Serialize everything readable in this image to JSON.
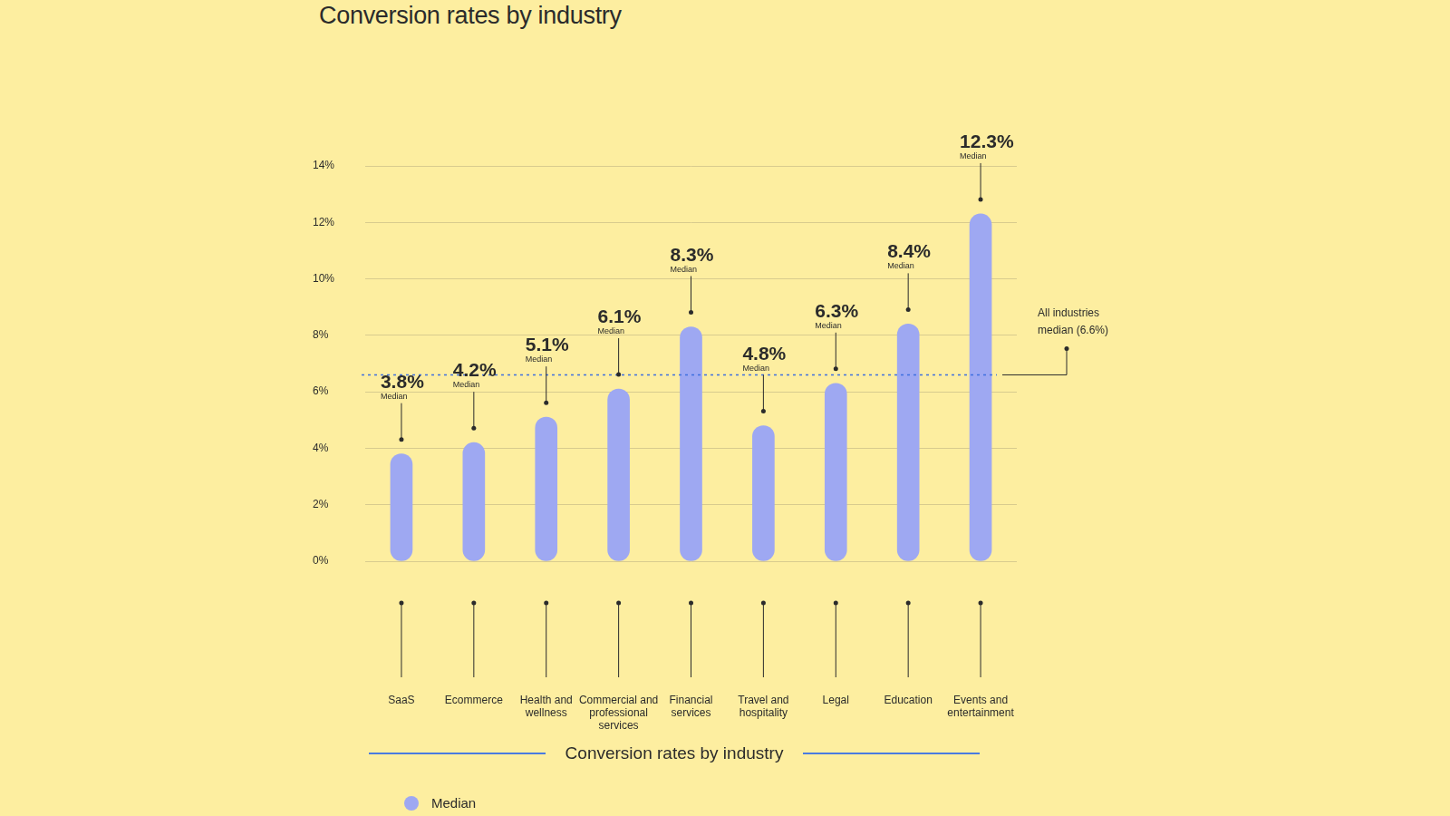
{
  "chart_data": {
    "type": "bar",
    "title": "Conversion rates by industry",
    "x_label": "Conversion rates by industry",
    "categories": [
      "SaaS",
      "Ecommerce",
      "Health and wellness",
      "Commercial and professional services",
      "Financial services",
      "Travel and hospitality",
      "Legal",
      "Education",
      "Events and entertainment"
    ],
    "series": [
      {
        "name": "Median",
        "color": "#9ea8f2",
        "values": [
          3.8,
          4.2,
          5.1,
          6.1,
          8.3,
          4.8,
          6.3,
          8.4,
          12.3
        ],
        "value_labels": [
          "3.8%",
          "4.2%",
          "5.1%",
          "6.1%",
          "8.3%",
          "4.8%",
          "6.3%",
          "8.4%",
          "12.3%"
        ]
      }
    ],
    "ylim": [
      0,
      14
    ],
    "yticks": [
      {
        "value": 0,
        "label": "0%"
      },
      {
        "value": 2,
        "label": "2%"
      },
      {
        "value": 4,
        "label": "4%"
      },
      {
        "value": 6,
        "label": "6%"
      },
      {
        "value": 8,
        "label": "8%"
      },
      {
        "value": 10,
        "label": "10%"
      },
      {
        "value": 12,
        "label": "12%"
      },
      {
        "value": 14,
        "label": "14%"
      }
    ],
    "annotations": [
      {
        "text": [
          "All industries",
          "median (6.6%)"
        ],
        "value": 6.6,
        "line_style": "dashed",
        "color": "#3f6fe0"
      }
    ],
    "grid": true,
    "data_labels": true,
    "legend": "bottom"
  }
}
